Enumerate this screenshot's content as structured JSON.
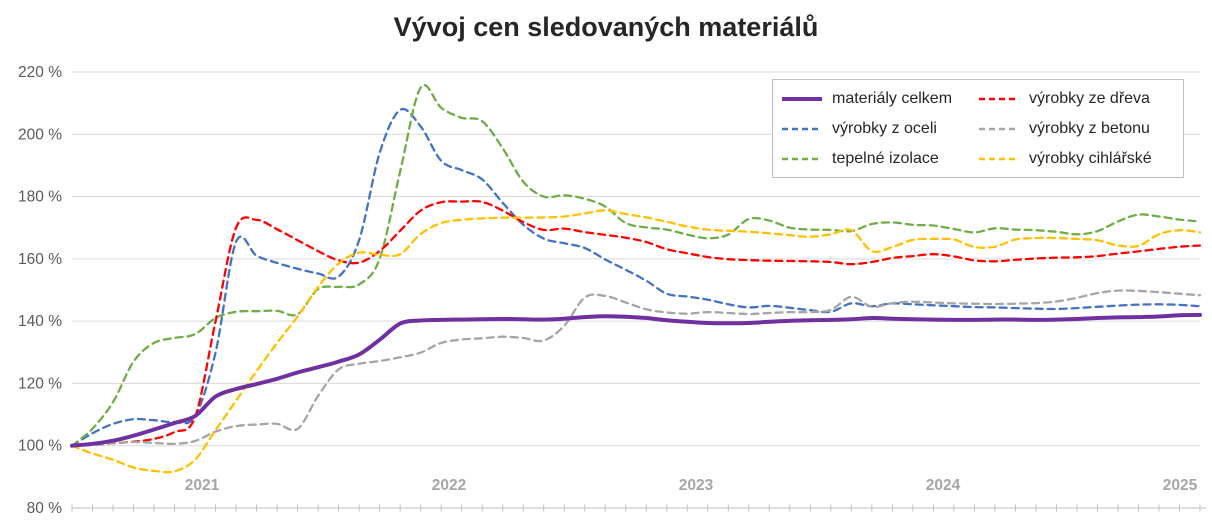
{
  "title": "Vývoj cen sledovaných materiálů",
  "chart_data": {
    "type": "line",
    "title": "Vývoj cen sledovaných materiálů",
    "x_axis": {
      "year_labels": [
        "2021",
        "2022",
        "2023",
        "2024",
        "2025"
      ],
      "tick_unit": "month",
      "points_total": 56,
      "grid": false
    },
    "y_axis": {
      "unit": "%",
      "min": 80,
      "max": 220,
      "step": 20,
      "tick_labels": [
        "220 %",
        "200 %",
        "180 %",
        "160 %",
        "140 %",
        "120 %",
        "100 %",
        "80 %"
      ],
      "grid": true
    },
    "legend": {
      "position": "top-right",
      "columns": 2,
      "row_major_order": [
        0,
        3,
        1,
        4,
        2,
        5
      ]
    },
    "series": [
      {
        "name": "materiály celkem",
        "color": "#7030A0",
        "style": "solid",
        "width": 4,
        "values": [
          100,
          100.6,
          101.6,
          103.2,
          105.2,
          107.3,
          109.5,
          115.8,
          118.2,
          119.8,
          121.5,
          123.5,
          125.2,
          127,
          129.3,
          134,
          139.2,
          140.2,
          140.4,
          140.5,
          140.6,
          140.7,
          140.6,
          140.5,
          140.8,
          141.3,
          141.6,
          141.4,
          141,
          140.3,
          139.8,
          139.4,
          139.3,
          139.4,
          139.8,
          140.1,
          140.3,
          140.4,
          140.6,
          141,
          140.8,
          140.6,
          140.5,
          140.4,
          140.4,
          140.5,
          140.5,
          140.4,
          140.5,
          140.7,
          141,
          141.2,
          141.3,
          141.5,
          141.9,
          142
        ]
      },
      {
        "name": "výrobky z oceli",
        "color": "#4472C4",
        "style": "dashed",
        "width": 2.3,
        "values": [
          100,
          104,
          107,
          108.5,
          108.2,
          107.6,
          109.5,
          130,
          165.5,
          161,
          158.7,
          156.8,
          155.3,
          154.3,
          166,
          194,
          207.8,
          202.5,
          191.5,
          188.5,
          185.5,
          178,
          171,
          166.5,
          165,
          163.5,
          159.8,
          156.5,
          153,
          148.8,
          147.9,
          146.9,
          145.4,
          144.4,
          144.9,
          144.3,
          143.5,
          143,
          145.7,
          144.8,
          145.7,
          145.4,
          145.1,
          144.8,
          144.5,
          144.4,
          144.2,
          144,
          143.9,
          144.2,
          144.6,
          145,
          145.3,
          145.4,
          145.2,
          144.8
        ]
      },
      {
        "name": "tepelné izolace",
        "color": "#70AD47",
        "style": "dashed",
        "width": 2.3,
        "values": [
          100,
          105.5,
          114,
          127,
          133,
          134.6,
          135.8,
          141,
          143,
          143.2,
          143.3,
          142.2,
          150.3,
          151,
          151.8,
          160,
          188,
          215,
          208.5,
          205.3,
          204.2,
          195.5,
          184.8,
          180,
          180.4,
          179.3,
          176.8,
          171.5,
          170.1,
          169.4,
          167.8,
          166.6,
          167.8,
          172.8,
          172.3,
          170,
          169.4,
          169.3,
          168.9,
          171.2,
          171.7,
          170.9,
          170.7,
          169.6,
          168.5,
          169.8,
          169.4,
          169.2,
          168.7,
          167.9,
          168.9,
          172,
          174.2,
          173.6,
          172.6,
          172
        ]
      },
      {
        "name": "výrobky ze dřeva",
        "color": "#FF0000",
        "style": "dashed",
        "width": 2.3,
        "values": [
          100,
          100.3,
          100.8,
          101.3,
          102.2,
          104.4,
          109.2,
          140,
          170,
          172.5,
          169.5,
          166,
          162.5,
          159.5,
          158.8,
          162.5,
          169,
          175.5,
          178.2,
          178.4,
          178.3,
          175.5,
          171.8,
          169.3,
          169.7,
          168.6,
          167.7,
          166.8,
          165.4,
          163.1,
          161.8,
          160.6,
          159.9,
          159.6,
          159.4,
          159.3,
          159.2,
          159,
          158.3,
          159,
          160.3,
          160.9,
          161.5,
          160.8,
          159.5,
          159.2,
          159.7,
          160.1,
          160.4,
          160.5,
          160.9,
          161.7,
          162.4,
          163.2,
          163.9,
          164.3
        ]
      },
      {
        "name": "výrobky z betonu",
        "color": "#A5A5A5",
        "style": "dashed",
        "width": 2.3,
        "values": [
          100,
          100.3,
          100.8,
          101.2,
          100.9,
          100.6,
          101.5,
          104.5,
          106.3,
          106.8,
          107,
          105.4,
          116,
          124.5,
          126.3,
          127.2,
          128.4,
          129.9,
          133,
          134.1,
          134.5,
          135,
          134.6,
          133.8,
          138.5,
          147.6,
          148.1,
          146,
          143.8,
          142.8,
          142.4,
          142.9,
          142.6,
          142.3,
          142.6,
          142.9,
          142.9,
          143.6,
          147.8,
          144.6,
          145.8,
          146.2,
          146,
          145.7,
          145.6,
          145.5,
          145.6,
          145.8,
          146.3,
          147.5,
          149,
          149.8,
          149.7,
          149.3,
          148.8,
          148.3
        ]
      },
      {
        "name": "výrobky cihlářské",
        "color": "#FFC000",
        "style": "dashed",
        "width": 2.3,
        "values": [
          100,
          97.5,
          95.5,
          93,
          91.9,
          91.8,
          95.5,
          105,
          114.5,
          124,
          133,
          141.5,
          151,
          158.5,
          162,
          161.3,
          161.5,
          168,
          171.5,
          172.5,
          173,
          173.2,
          173.2,
          173.3,
          173.6,
          174.6,
          175.6,
          174.4,
          173.3,
          171.9,
          170.4,
          169.4,
          169,
          168.7,
          168.2,
          167.6,
          167.1,
          167.9,
          169.2,
          162.5,
          163.8,
          166.1,
          166.4,
          166.2,
          163.8,
          163.9,
          166.2,
          166.7,
          166.7,
          166.4,
          166,
          164.3,
          164.2,
          167.9,
          169.2,
          168.5
        ]
      }
    ],
    "colors": {
      "title": "#262626",
      "y_tick_label": "#595959",
      "x_year_label": "#a6a6a6",
      "gridline": "#d9d9d9",
      "axis_line": "#bfbfbf",
      "legend_border": "#bfbfbf",
      "legend_text": "#262626"
    }
  }
}
